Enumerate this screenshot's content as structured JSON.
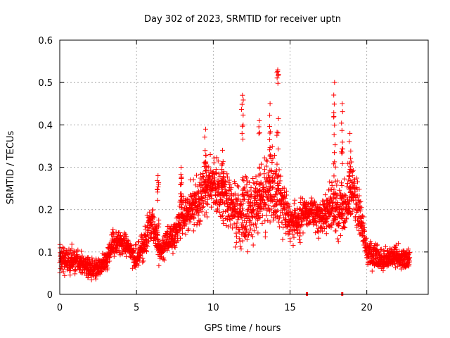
{
  "chart_data": {
    "type": "scatter",
    "title": "Day 302 of 2023, SRMTID for receiver uptn",
    "xlabel": "GPS time / hours",
    "ylabel": "SRMTID / TECUs",
    "xlim": [
      0,
      24
    ],
    "ylim": [
      0,
      0.6
    ],
    "xticks": [
      0,
      5,
      10,
      15,
      20
    ],
    "yticks": [
      0,
      0.1,
      0.2,
      0.3,
      0.4,
      0.5,
      0.6
    ],
    "xtick_labels": [
      "0",
      "5",
      "10",
      "15",
      "20"
    ],
    "ytick_labels": [
      "0",
      "0.1",
      "0.2",
      "0.3",
      "0.4",
      "0.5",
      "0.6"
    ],
    "grid": true,
    "marker": "+",
    "color": "#ff0000",
    "series": [
      {
        "name": "SRMTID",
        "envelope": {
          "x": [
            0,
            0.5,
            1.0,
            1.5,
            2.0,
            2.5,
            3.0,
            3.5,
            4.0,
            4.5,
            5.0,
            5.5,
            6.0,
            6.5,
            7.0,
            7.5,
            8.0,
            8.5,
            9.0,
            9.5,
            10.0,
            10.5,
            11.0,
            11.5,
            12.0,
            12.5,
            13.0,
            13.5,
            14.0,
            14.5,
            15.0,
            15.5,
            16.0,
            16.5,
            17.0,
            17.5,
            18.0,
            18.5,
            19.0,
            19.5,
            20.0,
            20.5,
            21.0,
            21.5,
            22.0,
            22.5,
            22.8
          ],
          "center": [
            0.09,
            0.08,
            0.08,
            0.07,
            0.06,
            0.06,
            0.08,
            0.12,
            0.12,
            0.11,
            0.08,
            0.12,
            0.18,
            0.1,
            0.13,
            0.14,
            0.18,
            0.2,
            0.22,
            0.25,
            0.26,
            0.24,
            0.22,
            0.19,
            0.19,
            0.2,
            0.22,
            0.24,
            0.24,
            0.21,
            0.17,
            0.17,
            0.2,
            0.19,
            0.18,
            0.2,
            0.21,
            0.2,
            0.25,
            0.2,
            0.1,
            0.09,
            0.08,
            0.09,
            0.09,
            0.08,
            0.09
          ],
          "spread": [
            0.04,
            0.04,
            0.04,
            0.03,
            0.03,
            0.03,
            0.03,
            0.04,
            0.04,
            0.03,
            0.04,
            0.05,
            0.06,
            0.04,
            0.04,
            0.05,
            0.06,
            0.07,
            0.08,
            0.08,
            0.08,
            0.08,
            0.07,
            0.08,
            0.1,
            0.09,
            0.09,
            0.1,
            0.11,
            0.08,
            0.06,
            0.05,
            0.05,
            0.05,
            0.05,
            0.07,
            0.09,
            0.08,
            0.1,
            0.07,
            0.04,
            0.04,
            0.03,
            0.03,
            0.03,
            0.03,
            0.03
          ]
        },
        "peaks": [
          {
            "x": 9.5,
            "y": 0.39
          },
          {
            "x": 10.6,
            "y": 0.34
          },
          {
            "x": 11.9,
            "y": 0.47
          },
          {
            "x": 13.0,
            "y": 0.41
          },
          {
            "x": 13.7,
            "y": 0.45
          },
          {
            "x": 14.2,
            "y": 0.53
          },
          {
            "x": 17.9,
            "y": 0.5
          },
          {
            "x": 18.4,
            "y": 0.45
          },
          {
            "x": 18.9,
            "y": 0.38
          },
          {
            "x": 6.4,
            "y": 0.28
          },
          {
            "x": 7.9,
            "y": 0.3
          }
        ],
        "zero_points": [
          {
            "x": 16.1,
            "y": 0
          },
          {
            "x": 18.4,
            "y": 0
          }
        ]
      }
    ]
  }
}
